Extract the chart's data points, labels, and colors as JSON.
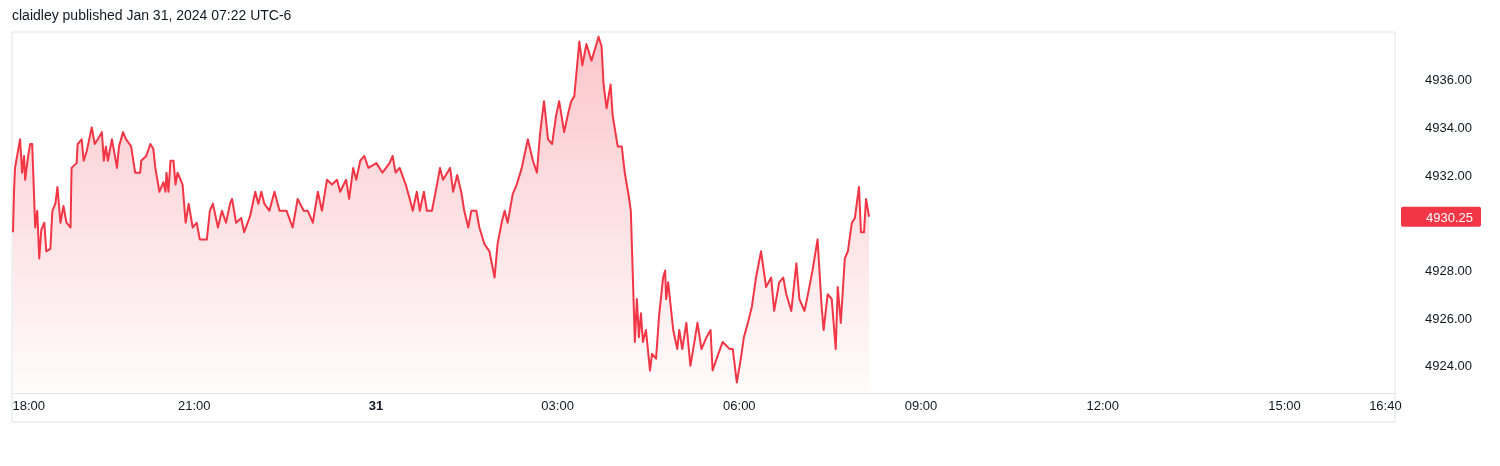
{
  "chart_data": {
    "type": "area",
    "title": "claidley published Jan 31, 2024 07:22 UTC-6",
    "x": [
      "2024-01-30T18:01",
      "2024-01-30T18:02",
      "2024-01-30T18:03",
      "2024-01-30T18:08",
      "2024-01-30T18:10",
      "2024-01-30T18:12",
      "2024-01-30T18:13",
      "2024-01-30T18:16",
      "2024-01-30T18:18",
      "2024-01-30T18:20",
      "2024-01-30T18:23",
      "2024-01-30T18:25",
      "2024-01-30T18:27",
      "2024-01-30T18:29",
      "2024-01-30T18:32",
      "2024-01-30T18:34",
      "2024-01-30T18:38",
      "2024-01-30T18:40",
      "2024-01-30T18:43",
      "2024-01-30T18:45",
      "2024-01-30T18:48",
      "2024-01-30T18:51",
      "2024-01-30T18:54",
      "2024-01-30T18:58",
      "2024-01-30T18:59",
      "2024-01-30T19:04",
      "2024-01-30T19:05",
      "2024-01-30T19:09",
      "2024-01-30T19:11",
      "2024-01-30T19:14",
      "2024-01-30T19:19",
      "2024-01-30T19:22",
      "2024-01-30T19:25",
      "2024-01-30T19:29",
      "2024-01-30T19:31",
      "2024-01-30T19:33",
      "2024-01-30T19:35",
      "2024-01-30T19:39",
      "2024-01-30T19:44",
      "2024-01-30T19:46",
      "2024-01-30T19:50",
      "2024-01-30T19:53",
      "2024-01-30T19:58",
      "2024-01-30T20:02",
      "2024-01-30T20:07",
      "2024-01-30T20:08",
      "2024-01-30T20:13",
      "2024-01-30T20:17",
      "2024-01-30T20:20",
      "2024-01-30T20:22",
      "2024-01-30T20:26",
      "2024-01-30T20:30",
      "2024-01-30T20:32",
      "2024-01-30T20:33",
      "2024-01-30T20:35",
      "2024-01-30T20:37",
      "2024-01-30T20:40",
      "2024-01-30T20:42",
      "2024-01-30T20:44",
      "2024-01-30T20:49",
      "2024-01-30T20:52",
      "2024-01-30T20:55",
      "2024-01-30T20:59",
      "2024-01-30T21:03",
      "2024-01-30T21:06",
      "2024-01-30T21:13",
      "2024-01-30T21:16",
      "2024-01-30T21:19",
      "2024-01-30T21:24",
      "2024-01-30T21:28",
      "2024-01-30T21:32",
      "2024-01-30T21:36",
      "2024-01-30T21:38",
      "2024-01-30T21:42",
      "2024-01-30T21:47",
      "2024-01-30T21:50",
      "2024-01-30T21:56",
      "2024-01-30T22:01",
      "2024-01-30T22:04",
      "2024-01-30T22:07",
      "2024-01-30T22:10",
      "2024-01-30T22:15",
      "2024-01-30T22:20",
      "2024-01-30T22:25",
      "2024-01-30T22:32",
      "2024-01-30T22:38",
      "2024-01-30T22:43",
      "2024-01-30T22:49",
      "2024-01-30T22:53",
      "2024-01-30T22:58",
      "2024-01-30T23:03",
      "2024-01-30T23:07",
      "2024-01-30T23:12",
      "2024-01-30T23:17",
      "2024-01-30T23:22",
      "2024-01-30T23:25",
      "2024-01-30T23:31",
      "2024-01-30T23:34",
      "2024-01-30T23:38",
      "2024-01-30T23:41",
      "2024-01-30T23:45",
      "2024-01-30T23:49",
      "2024-01-30T23:53",
      "2024-01-31T00:01",
      "2024-01-31T00:07",
      "2024-01-31T00:14",
      "2024-01-31T00:17",
      "2024-01-31T00:20",
      "2024-01-31T00:24",
      "2024-01-31T00:30",
      "2024-01-31T00:34",
      "2024-01-31T00:37",
      "2024-01-31T00:41",
      "2024-01-31T00:44",
      "2024-01-31T00:48",
      "2024-01-31T00:51",
      "2024-01-31T00:56",
      "2024-01-31T01:01",
      "2024-01-31T01:04",
      "2024-01-31T01:07",
      "2024-01-31T01:14",
      "2024-01-31T01:17",
      "2024-01-31T01:21",
      "2024-01-31T01:25",
      "2024-01-31T01:28",
      "2024-01-31T01:32",
      "2024-01-31T01:35",
      "2024-01-31T01:40",
      "2024-01-31T01:43",
      "2024-01-31T01:48",
      "2024-01-31T01:53",
      "2024-01-31T01:58",
      "2024-01-31T02:01",
      "2024-01-31T02:05",
      "2024-01-31T02:08",
      "2024-01-31T02:11",
      "2024-01-31T02:16",
      "2024-01-31T02:20",
      "2024-01-31T02:25",
      "2024-01-31T02:31",
      "2024-01-31T02:36",
      "2024-01-31T02:40",
      "2024-01-31T02:43",
      "2024-01-31T02:47",
      "2024-01-31T02:51",
      "2024-01-31T02:55",
      "2024-01-31T02:59",
      "2024-01-31T03:02",
      "2024-01-31T03:07",
      "2024-01-31T03:11",
      "2024-01-31T03:14",
      "2024-01-31T03:17",
      "2024-01-31T03:22",
      "2024-01-31T03:25",
      "2024-01-31T03:29",
      "2024-01-31T03:34",
      "2024-01-31T03:39",
      "2024-01-31T03:41",
      "2024-01-31T03:44",
      "2024-01-31T03:46",
      "2024-01-31T03:49",
      "2024-01-31T03:53",
      "2024-01-31T03:55",
      "2024-01-31T04:00",
      "2024-01-31T04:04",
      "2024-01-31T04:07",
      "2024-01-31T04:11",
      "2024-01-31T04:13",
      "2024-01-31T04:17",
      "2024-01-31T04:19",
      "2024-01-31T04:21",
      "2024-01-31T04:23",
      "2024-01-31T04:25",
      "2024-01-31T04:28",
      "2024-01-31T04:32",
      "2024-01-31T04:34",
      "2024-01-31T04:38",
      "2024-01-31T04:41",
      "2024-01-31T04:45",
      "2024-01-31T04:47",
      "2024-01-31T04:48",
      "2024-01-31T04:50",
      "2024-01-31T04:55",
      "2024-01-31T04:59",
      "2024-01-31T05:01",
      "2024-01-31T05:04",
      "2024-01-31T05:08",
      "2024-01-31T05:12",
      "2024-01-31T05:16",
      "2024-01-31T05:19",
      "2024-01-31T05:23",
      "2024-01-31T05:28",
      "2024-01-31T05:32",
      "2024-01-31T05:34",
      "2024-01-31T05:38",
      "2024-01-31T05:44",
      "2024-01-31T05:51",
      "2024-01-31T05:54",
      "2024-01-31T05:58",
      "2024-01-31T06:02",
      "2024-01-31T06:05",
      "2024-01-31T06:09",
      "2024-01-31T06:13",
      "2024-01-31T06:17",
      "2024-01-31T06:22",
      "2024-01-31T06:27",
      "2024-01-31T06:32",
      "2024-01-31T06:35",
      "2024-01-31T06:40",
      "2024-01-31T06:44",
      "2024-01-31T06:47",
      "2024-01-31T06:52",
      "2024-01-31T06:57",
      "2024-01-31T07:00",
      "2024-01-31T07:05",
      "2024-01-31T07:08",
      "2024-01-31T07:13",
      "2024-01-31T07:18",
      "2024-01-31T07:22",
      "2024-01-31T07:24",
      "2024-01-31T07:28",
      "2024-01-31T07:32",
      "2024-01-31T07:36",
      "2024-01-31T07:38",
      "2024-01-31T07:41",
      "2024-01-31T07:45",
      "2024-01-31T07:48",
      "2024-01-31T07:52",
      "2024-01-31T07:55",
      "2024-01-31T07:59",
      "2024-01-31T08:01",
      "2024-01-31T08:04",
      "2024-01-31T08:06",
      "2024-01-31T08:09"
    ],
    "series": [
      {
        "color": "#f23645",
        "values": [
          4929.6,
          4931.3,
          4932.3,
          4933.5,
          4932.1,
          4932.8,
          4931.8,
          4932.8,
          4933.3,
          4933.3,
          4929.8,
          4930.5,
          4928.5,
          4929.7,
          4930.0,
          4928.8,
          4928.9,
          4930.5,
          4930.8,
          4931.5,
          4930.0,
          4930.7,
          4930.0,
          4929.8,
          4932.3,
          4932.5,
          4933.3,
          4933.5,
          4932.6,
          4933.0,
          4934.0,
          4933.3,
          4933.5,
          4933.8,
          4932.6,
          4933.2,
          4932.6,
          4933.5,
          4932.3,
          4933.2,
          4933.8,
          4933.5,
          4933.2,
          4932.1,
          4932.1,
          4932.6,
          4932.8,
          4933.3,
          4933.1,
          4932.3,
          4931.3,
          4931.7,
          4931.3,
          4932.1,
          4931.3,
          4932.6,
          4932.6,
          4931.6,
          4932.1,
          4931.6,
          4930.0,
          4930.8,
          4929.8,
          4930.0,
          4929.3,
          4929.3,
          4930.5,
          4930.8,
          4929.8,
          4930.5,
          4930.0,
          4930.8,
          4931.0,
          4930.0,
          4930.2,
          4929.6,
          4930.3,
          4931.3,
          4930.8,
          4931.3,
          4930.8,
          4930.5,
          4931.3,
          4930.5,
          4930.5,
          4929.8,
          4931.0,
          4930.5,
          4930.5,
          4930.0,
          4931.3,
          4930.5,
          4931.8,
          4931.6,
          4931.8,
          4931.3,
          4931.8,
          4931.0,
          4932.3,
          4931.8,
          4932.6,
          4932.8,
          4932.3,
          4932.5,
          4932.1,
          4932.5,
          4932.8,
          4932.1,
          4932.3,
          4931.6,
          4931.0,
          4930.5,
          4931.3,
          4930.5,
          4931.3,
          4930.5,
          4930.5,
          4931.6,
          4932.3,
          4931.8,
          4932.3,
          4931.3,
          4932.0,
          4931.3,
          4930.5,
          4929.8,
          4930.5,
          4930.5,
          4929.8,
          4929.1,
          4928.8,
          4927.7,
          4929.1,
          4930.0,
          4930.5,
          4930.0,
          4931.2,
          4931.6,
          4932.3,
          4933.5,
          4932.6,
          4932.1,
          4933.7,
          4935.1,
          4933.5,
          4933.3,
          4934.5,
          4935.1,
          4933.8,
          4934.6,
          4935.1,
          4935.3,
          4937.6,
          4936.6,
          4937.5,
          4936.8,
          4937.5,
          4937.8,
          4937.4,
          4935.8,
          4934.8,
          4935.8,
          4934.5,
          4933.2,
          4933.2,
          4932.1,
          4931.1,
          4930.5,
          4925.0,
          4926.8,
          4925.2,
          4926.2,
          4925.0,
          4925.5,
          4923.8,
          4924.5,
          4924.3,
          4926.1,
          4927.7,
          4928.0,
          4926.8,
          4927.5,
          4925.5,
          4924.7,
          4925.5,
          4924.7,
          4925.8,
          4924.0,
          4925.0,
          4925.8,
          4924.7,
          4925.2,
          4925.5,
          4923.8,
          4924.3,
          4925.0,
          4924.7,
          4924.7,
          4923.3,
          4924.3,
          4925.2,
          4925.8,
          4926.5,
          4927.7,
          4928.8,
          4927.3,
          4927.7,
          4926.3,
          4927.5,
          4927.7,
          4927.0,
          4926.3,
          4928.3,
          4926.8,
          4926.3,
          4926.9,
          4928.0,
          4929.3,
          4926.5,
          4925.5,
          4927.0,
          4926.8,
          4924.7,
          4927.3,
          4925.8,
          4928.5,
          4928.8,
          4930.0,
          4930.2,
          4931.5,
          4929.6,
          4929.6,
          4931.0,
          4930.25
        ]
      }
    ],
    "xlim": [
      "2024-01-30T18:00",
      "2024-01-31T16:50"
    ],
    "xticks": [
      {
        "value": "2024-01-30T18:00",
        "label": "18:00"
      },
      {
        "value": "2024-01-30T21:00",
        "label": "21:00"
      },
      {
        "value": "2024-01-31T00:00",
        "label": "31"
      },
      {
        "value": "2024-01-31T03:00",
        "label": "03:00"
      },
      {
        "value": "2024-01-31T06:00",
        "label": "06:00"
      },
      {
        "value": "2024-01-31T09:00",
        "label": "09:00"
      },
      {
        "value": "2024-01-31T12:00",
        "label": "12:00"
      },
      {
        "value": "2024-01-31T15:00",
        "label": "15:00"
      },
      {
        "value": "2024-01-31T16:40",
        "label": "16:40"
      }
    ],
    "ylim": [
      4922.9,
      4938.0
    ],
    "yticks": [
      {
        "value": 4924,
        "label": "4924.00"
      },
      {
        "value": 4926,
        "label": "4926.00"
      },
      {
        "value": 4928,
        "label": "4928.00"
      },
      {
        "value": 4932,
        "label": "4932.00"
      },
      {
        "value": 4934,
        "label": "4934.00"
      },
      {
        "value": 4936,
        "label": "4936.00"
      }
    ],
    "annotations": [
      "4930.25"
    ],
    "grid": false
  }
}
